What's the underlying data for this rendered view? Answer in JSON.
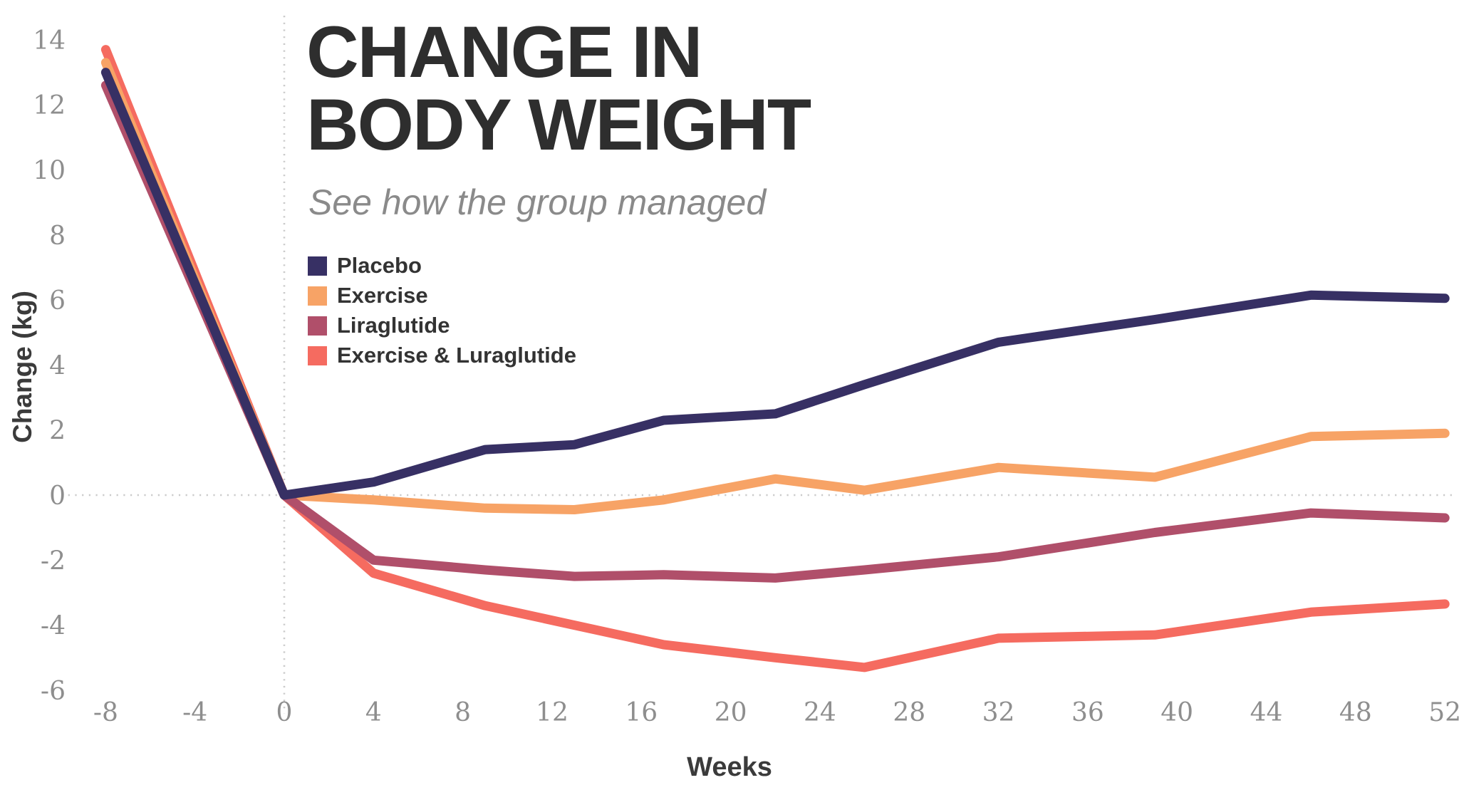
{
  "header": {
    "title_lines": [
      "CHANGE IN",
      "BODY WEIGHT"
    ],
    "subtitle": "See how the group managed"
  },
  "chart_data": {
    "type": "line",
    "title": "CHANGE IN BODY WEIGHT",
    "subtitle": "See how the group managed",
    "xlabel": "Weeks",
    "ylabel": "Change (kg)",
    "x_ticks": [
      -8,
      -4,
      0,
      4,
      8,
      12,
      16,
      20,
      24,
      28,
      32,
      36,
      40,
      44,
      48,
      52
    ],
    "y_ticks": [
      -6,
      -4,
      -2,
      0,
      2,
      4,
      6,
      8,
      10,
      12,
      14
    ],
    "xlim": [
      -10.0,
      52.7
    ],
    "ylim": [
      -6.7,
      14.6
    ],
    "x_weeks": [
      -8,
      0,
      4,
      9,
      13,
      17,
      22,
      26,
      32,
      39,
      46,
      52
    ],
    "series": [
      {
        "name": "Placebo",
        "color": "#373064",
        "values": [
          13.0,
          0,
          0.4,
          1.4,
          1.55,
          2.3,
          2.5,
          3.4,
          4.7,
          5.4,
          6.15,
          6.05
        ]
      },
      {
        "name": "Exercise",
        "color": "#f7a366",
        "values": [
          13.3,
          0,
          -0.15,
          -0.4,
          -0.45,
          -0.15,
          0.5,
          0.15,
          0.85,
          0.55,
          1.8,
          1.9
        ]
      },
      {
        "name": "Liraglutide",
        "color": "#b04f6a",
        "values": [
          12.6,
          0,
          -2.0,
          -2.3,
          -2.5,
          -2.45,
          -2.55,
          -2.3,
          -1.9,
          -1.15,
          -0.55,
          -0.7
        ]
      },
      {
        "name": "Exercise & Luraglutide",
        "color": "#f56b60",
        "values": [
          13.7,
          0,
          -2.4,
          -3.4,
          -4.0,
          -4.6,
          -5.0,
          -5.3,
          -4.4,
          -4.3,
          -3.6,
          -3.35
        ]
      }
    ],
    "legend_position": "inside-top-left",
    "grid": "dotted-zero-lines-only"
  },
  "colors": {
    "background": "#ffffff",
    "title": "#2e2e2e",
    "subtitle": "#8a8a8a",
    "tick_label": "#8e8e8e",
    "axis_title": "#3b3b3b",
    "dotted_line": "#cbcbcb"
  }
}
